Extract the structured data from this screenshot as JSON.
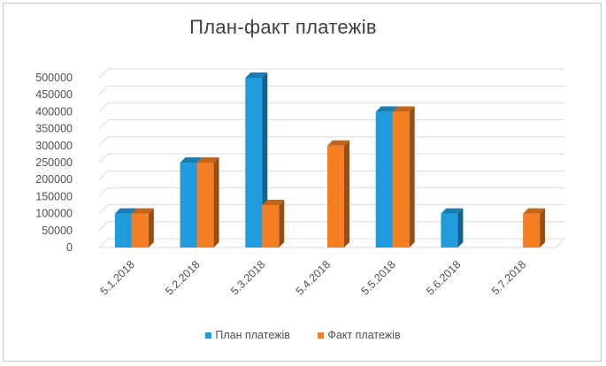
{
  "chart_data": {
    "type": "bar",
    "title": "План-факт платежів",
    "categories": [
      "5.1.2018",
      "5.2.2018",
      "5.3.2018",
      "5.4.2018",
      "5.5.2018",
      "5.6.2018",
      "5.7.2018"
    ],
    "series": [
      {
        "name": "План платежів",
        "color": "#1f9bde",
        "values": [
          100000,
          250000,
          500000,
          0,
          400000,
          100000,
          0
        ]
      },
      {
        "name": "Факт платежів",
        "color": "#f47e22",
        "values": [
          100000,
          250000,
          125000,
          300000,
          400000,
          0,
          100000
        ]
      }
    ],
    "y_ticks": [
      "0",
      "50000",
      "100000",
      "150000",
      "200000",
      "250000",
      "300000",
      "350000",
      "400000",
      "450000",
      "500000"
    ],
    "ylim": [
      0,
      500000
    ],
    "grid": true,
    "legend_position": "bottom",
    "style": "3d-column"
  }
}
